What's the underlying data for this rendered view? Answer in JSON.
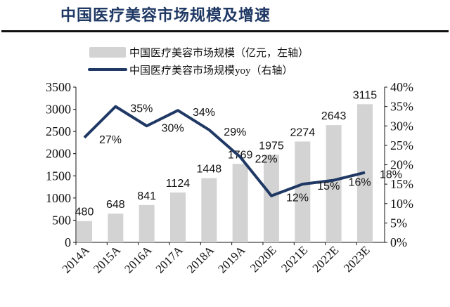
{
  "title": "中国医疗美容市场规模及增速",
  "chart_data": {
    "type": "bar+line",
    "categories": [
      "2014A",
      "2015A",
      "2016A",
      "2017A",
      "2018A",
      "2019A",
      "2020E",
      "2021E",
      "2022E",
      "2023E"
    ],
    "series": [
      {
        "name": "中国医疗美容市场规模（亿元，左轴）",
        "type": "bar",
        "axis": "left",
        "color": "#d3d3d3",
        "values": [
          480,
          648,
          841,
          1124,
          1448,
          1769,
          1975,
          2274,
          2643,
          3115
        ]
      },
      {
        "name": "中国医疗美容市场规模yoy（右轴）",
        "type": "line",
        "axis": "right",
        "color": "#1f3864",
        "values": [
          27,
          35,
          30,
          34,
          29,
          22,
          12,
          15,
          16,
          18
        ],
        "labels": [
          "27%",
          "35%",
          "30%",
          "34%",
          "29%",
          "22%",
          "12%",
          "15%",
          "16%",
          "18%"
        ]
      }
    ],
    "left_axis": {
      "ylim": [
        0,
        3500
      ],
      "ticks": [
        "0",
        "500",
        "1000",
        "1500",
        "2000",
        "2500",
        "3000",
        "3500"
      ]
    },
    "right_axis": {
      "ylim": [
        0,
        40
      ],
      "ticks": [
        "0%",
        "5%",
        "10%",
        "15%",
        "20%",
        "25%",
        "30%",
        "35%",
        "40%"
      ]
    },
    "legend": "top",
    "grid": false
  }
}
